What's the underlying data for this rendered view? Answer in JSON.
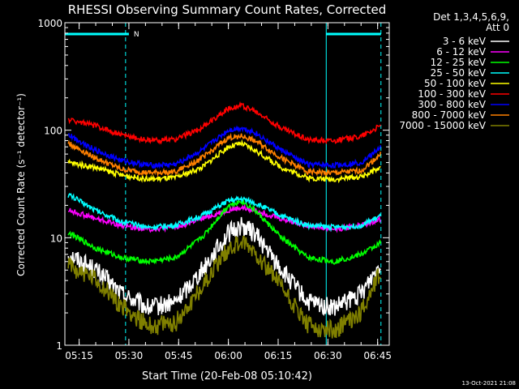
{
  "chart_data": {
    "type": "line",
    "title": "RHESSI Observing Summary Count Rates, Corrected",
    "xlabel": "Start Time (20-Feb-08 05:10:42)",
    "ylabel": "Corrected Count Rate (s⁻¹ detector⁻¹)",
    "ylim": [
      1,
      1000
    ],
    "yscale": "log",
    "xlim": [
      "05:10:42",
      "06:48:30"
    ],
    "x_ticks": [
      "05:15",
      "05:30",
      "05:45",
      "06:00",
      "06:15",
      "06:30",
      "06:45"
    ],
    "y_ticks": [
      "1",
      "10",
      "100",
      "1000"
    ],
    "grid": false,
    "legend_position": "right",
    "legend_header": [
      "Det 1,3,4,5,6,9,",
      "Att 0"
    ],
    "footer": "13-Oct-2021 21:08",
    "annotations": {
      "flag_label": "N",
      "flag_bars": [
        [
          "05:10:42",
          "05:30:00"
        ],
        [
          "06:29:30",
          "06:46:00"
        ]
      ],
      "vertical_lines": [
        {
          "time": "05:10:42",
          "style": "solid"
        },
        {
          "time": "05:29:00",
          "style": "dashed"
        },
        {
          "time": "06:29:30",
          "style": "solid"
        },
        {
          "time": "06:46:00",
          "style": "dashed"
        }
      ]
    },
    "x": [
      "05:12",
      "05:20",
      "05:28",
      "05:36",
      "05:44",
      "05:52",
      "06:00",
      "06:04",
      "06:08",
      "06:16",
      "06:24",
      "06:32",
      "06:40",
      "06:46"
    ],
    "series": [
      {
        "name": "3 - 6 keV",
        "color": "#ffffff",
        "values": [
          7,
          5,
          3,
          2.2,
          2.5,
          5,
          11,
          13,
          11,
          5,
          2.5,
          2.2,
          3,
          6
        ]
      },
      {
        "name": "6 - 12 keV",
        "color": "#ff00ff",
        "values": [
          18,
          15,
          13,
          12,
          12.5,
          15,
          18,
          19,
          18,
          15,
          13,
          12,
          13,
          15
        ]
      },
      {
        "name": "12 - 25 keV",
        "color": "#00ff00",
        "values": [
          11,
          8,
          6.5,
          6,
          6.5,
          10,
          20,
          22,
          18,
          10,
          6.5,
          6,
          7,
          9
        ]
      },
      {
        "name": "25 - 50 keV",
        "color": "#00ffff",
        "values": [
          25,
          18,
          14,
          12.5,
          13,
          16,
          22,
          23,
          21,
          16,
          13,
          12.5,
          13,
          16
        ]
      },
      {
        "name": "50 - 100 keV",
        "color": "#ffff00",
        "values": [
          50,
          45,
          38,
          35,
          36,
          45,
          70,
          75,
          65,
          45,
          36,
          35,
          37,
          45
        ]
      },
      {
        "name": "100 - 300 keV",
        "color": "#ff0000",
        "values": [
          125,
          110,
          90,
          80,
          82,
          105,
          160,
          170,
          150,
          105,
          82,
          80,
          88,
          110
        ]
      },
      {
        "name": "300 - 800 keV",
        "color": "#0000ff",
        "values": [
          90,
          65,
          52,
          47,
          48,
          65,
          100,
          105,
          95,
          65,
          48,
          47,
          50,
          70
        ]
      },
      {
        "name": "800 - 7000 keV",
        "color": "#ff8000",
        "values": [
          75,
          55,
          43,
          40,
          41,
          55,
          85,
          88,
          80,
          55,
          41,
          40,
          42,
          60
        ]
      },
      {
        "name": "7000 - 15000 keV",
        "color": "#808000",
        "values": [
          5.5,
          4,
          2.3,
          1.5,
          1.6,
          3.5,
          8,
          9,
          7.5,
          3.5,
          1.5,
          1.4,
          2,
          5
        ]
      }
    ]
  }
}
